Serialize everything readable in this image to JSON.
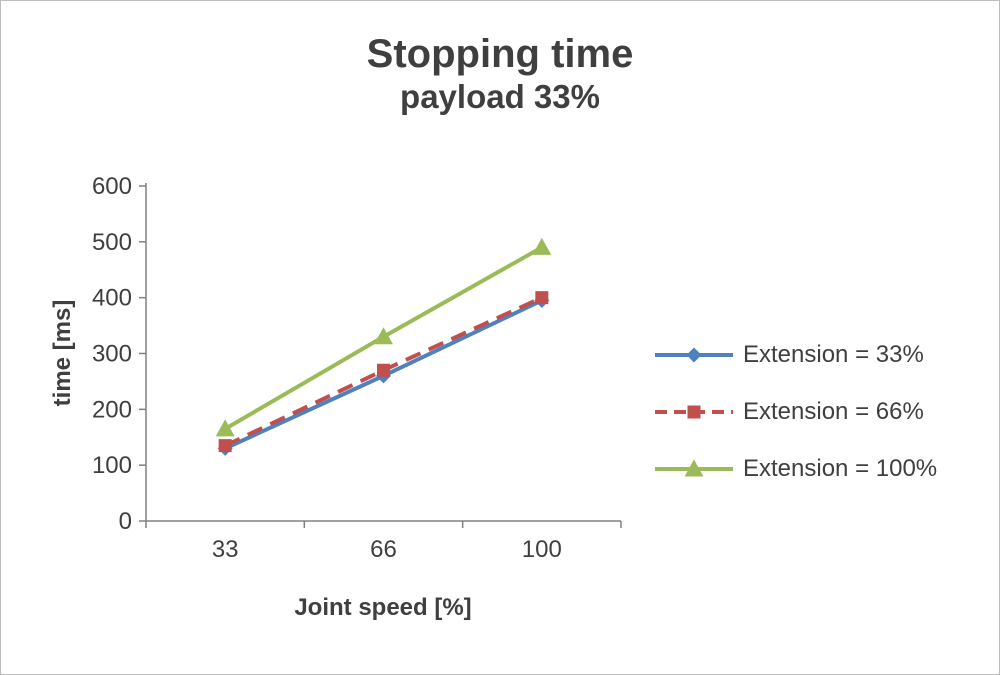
{
  "title": "Stopping time",
  "subtitle": "payload 33%",
  "chart_data": {
    "type": "line",
    "title": "Stopping time",
    "subtitle": "payload 33%",
    "xlabel": "Joint speed [%]",
    "ylabel": "time [ms]",
    "categories": [
      "33",
      "66",
      "100"
    ],
    "ylim": [
      0,
      600
    ],
    "ytick_step": 100,
    "grid": false,
    "legend_position": "right",
    "axis_color": "#808080",
    "text_color": "#3f3f3f",
    "series": [
      {
        "name": "Extension = 33%",
        "values": [
          130,
          260,
          395
        ],
        "color": "#4F81BD",
        "marker": "diamond",
        "dash": "solid"
      },
      {
        "name": "Extension = 66%",
        "values": [
          135,
          270,
          400
        ],
        "color": "#C0504D",
        "marker": "square",
        "dash": "dashed"
      },
      {
        "name": "Extension = 100%",
        "values": [
          165,
          330,
          490
        ],
        "color": "#9BBB59",
        "marker": "triangle",
        "dash": "solid"
      }
    ]
  }
}
